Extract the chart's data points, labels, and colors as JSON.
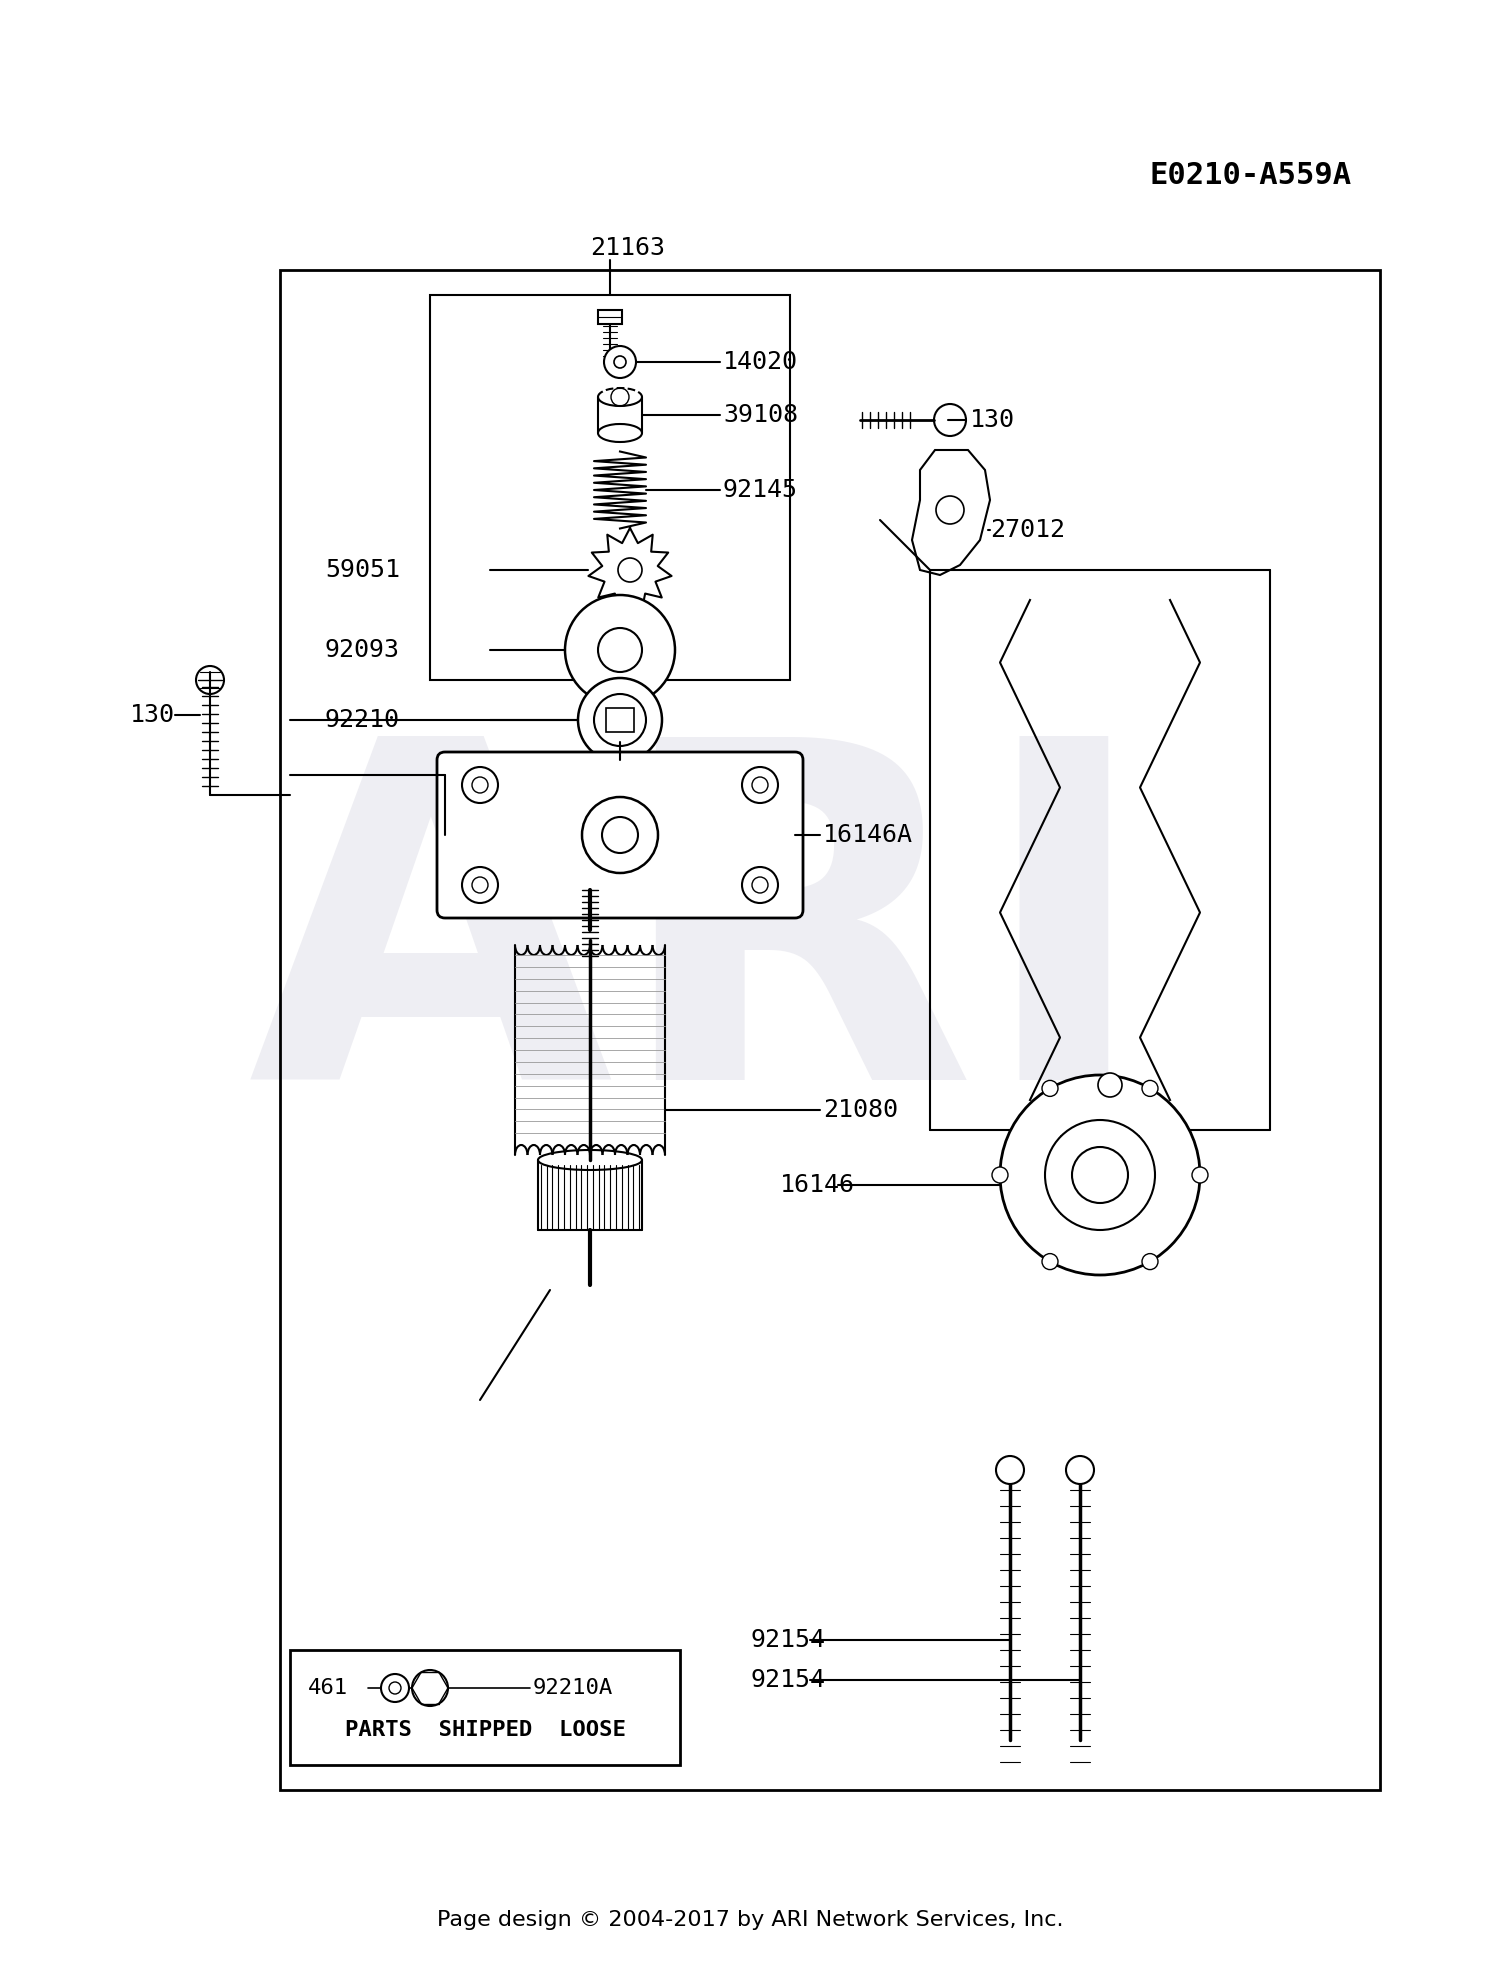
{
  "bg_color": "#ffffff",
  "diagram_id": "E0210-A559A",
  "footer": "Page design © 2004-2017 by ARI Network Services, Inc.",
  "watermark": "ARI",
  "figsize": [
    15.0,
    19.62
  ],
  "dpi": 100
}
